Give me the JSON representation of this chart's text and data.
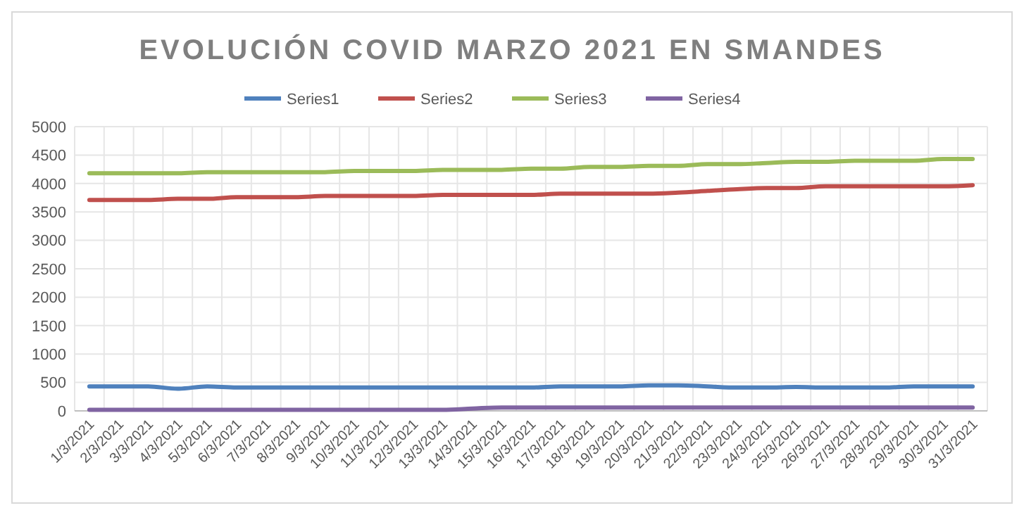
{
  "chart_data": {
    "type": "line",
    "title": "EVOLUCIÓN COVID MARZO 2021 EN SMANDES",
    "categories": [
      "1/3/2021",
      "2/3/2021",
      "3/3/2021",
      "4/3/2021",
      "5/3/2021",
      "6/3/2021",
      "7/3/2021",
      "8/3/2021",
      "9/3/2021",
      "10/3/2021",
      "11/3/2021",
      "12/3/2021",
      "13/3/2021",
      "14/3/2021",
      "15/3/2021",
      "16/3/2021",
      "17/3/2021",
      "18/3/2021",
      "19/3/2021",
      "20/3/2021",
      "21/3/2021",
      "22/3/2021",
      "23/3/2021",
      "24/3/2021",
      "25/3/2021",
      "26/3/2021",
      "27/3/2021",
      "28/3/2021",
      "29/3/2021",
      "30/3/2021",
      "31/3/2021"
    ],
    "series": [
      {
        "name": "Series1",
        "color": "#4f81bd",
        "values": [
          430,
          430,
          430,
          390,
          430,
          410,
          410,
          410,
          410,
          410,
          410,
          410,
          410,
          410,
          410,
          410,
          430,
          430,
          430,
          450,
          450,
          430,
          410,
          410,
          420,
          410,
          410,
          410,
          430,
          430,
          430
        ]
      },
      {
        "name": "Series2",
        "color": "#c0504d",
        "values": [
          3710,
          3710,
          3710,
          3730,
          3730,
          3760,
          3760,
          3760,
          3780,
          3780,
          3780,
          3780,
          3800,
          3800,
          3800,
          3800,
          3820,
          3820,
          3820,
          3820,
          3840,
          3870,
          3900,
          3920,
          3920,
          3950,
          3950,
          3950,
          3950,
          3950,
          3970
        ]
      },
      {
        "name": "Series3",
        "color": "#9bbb59",
        "values": [
          4180,
          4180,
          4180,
          4180,
          4200,
          4200,
          4200,
          4200,
          4200,
          4220,
          4220,
          4220,
          4240,
          4240,
          4240,
          4260,
          4260,
          4290,
          4290,
          4310,
          4310,
          4340,
          4340,
          4360,
          4380,
          4380,
          4400,
          4400,
          4400,
          4430,
          4430
        ]
      },
      {
        "name": "Series4",
        "color": "#8064a2",
        "values": [
          20,
          20,
          20,
          20,
          20,
          20,
          20,
          20,
          20,
          20,
          20,
          20,
          20,
          40,
          60,
          60,
          60,
          60,
          60,
          60,
          60,
          60,
          60,
          60,
          60,
          60,
          60,
          60,
          60,
          60,
          60
        ]
      }
    ],
    "ylim": [
      0,
      5000
    ],
    "yticks": [
      0,
      500,
      1000,
      1500,
      2000,
      2500,
      3000,
      3500,
      4000,
      4500,
      5000
    ],
    "grid": true,
    "legend": "top",
    "marker": "none",
    "line_style": "solid"
  }
}
